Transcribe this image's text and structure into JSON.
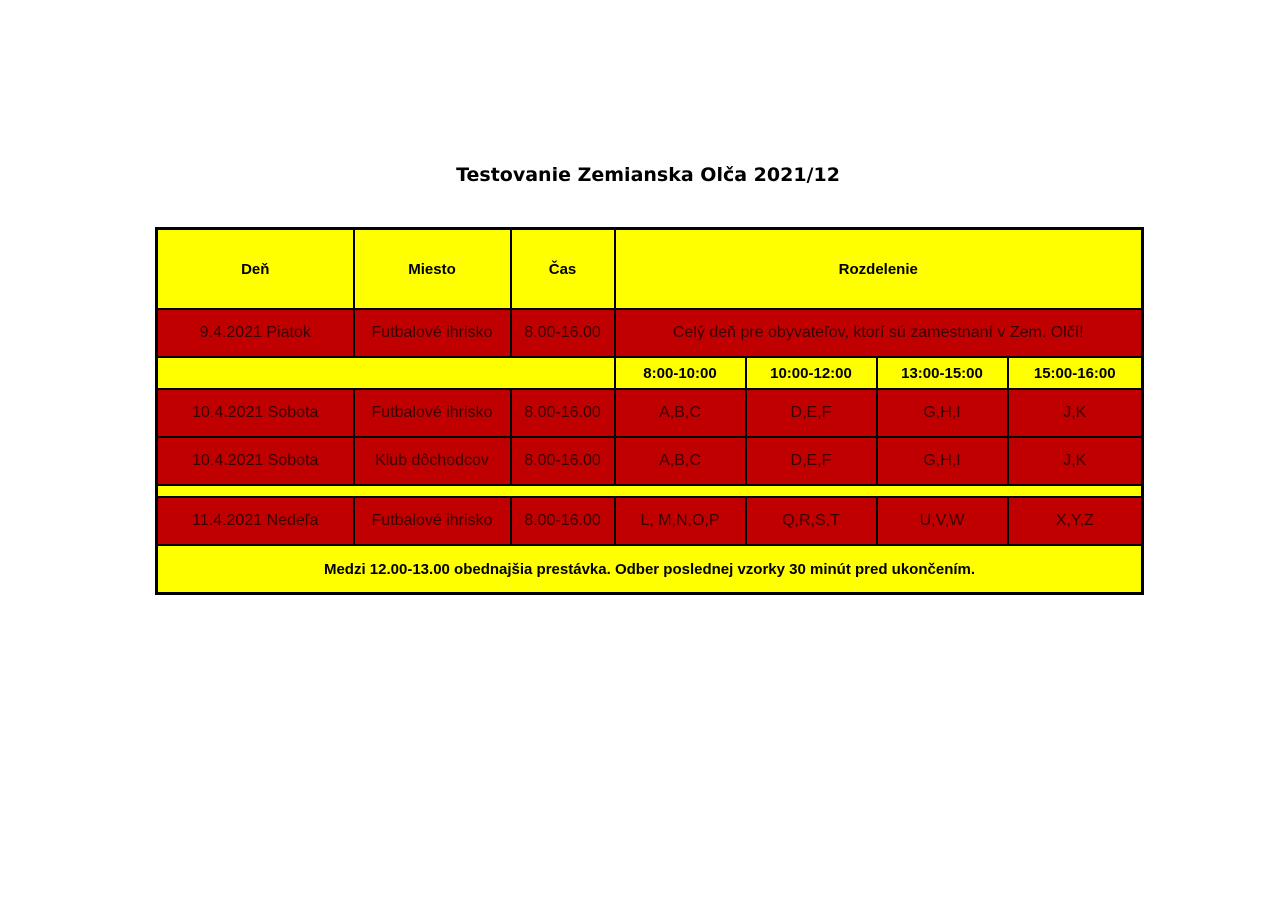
{
  "title": "Testovanie Zemianska Olča 2021/12",
  "headers": {
    "day": "Deň",
    "place": "Miesto",
    "time": "Čas",
    "split": "Rozdelenie"
  },
  "row1": {
    "day": "9.4.2021 Piatok",
    "place": "Futbalové ihrisko",
    "time": "8.00-16.00",
    "note": "Celý deň pre obyvateľov, ktorí sú zamestnaní v Zem. Olčí!"
  },
  "slots": [
    "8:00-10:00",
    "10:00-12:00",
    "13:00-15:00",
    "15:00-16:00"
  ],
  "rows": [
    {
      "day": "10.4.2021 Sobota",
      "place": "Futbalové ihrisko",
      "time": "8.00-16.00",
      "groups": [
        "A,B,C",
        "D,E,F",
        "G,H,I",
        "J,K"
      ]
    },
    {
      "day": "10.4.2021 Sobota",
      "place": "Klub dôchodcov",
      "time": "8.00-16.00",
      "groups": [
        "A,B,C",
        "D,E,F",
        "G,H,I",
        "J,K"
      ]
    },
    {
      "day": "11.4.2021 Nedeľa",
      "place": "Futbalové ihrisko",
      "time": "8.00-16.00",
      "groups": [
        "L, M,N,O,P",
        "Q,R,S,T",
        "U,V,W",
        "X,Y,Z"
      ]
    }
  ],
  "footer": "Medzi 12.00-13.00 obednajšia prestávka. Odber poslednej vzorky 30 minút pred ukončením.",
  "colors": {
    "yellow": "#ffff00",
    "red": "#c00000"
  }
}
